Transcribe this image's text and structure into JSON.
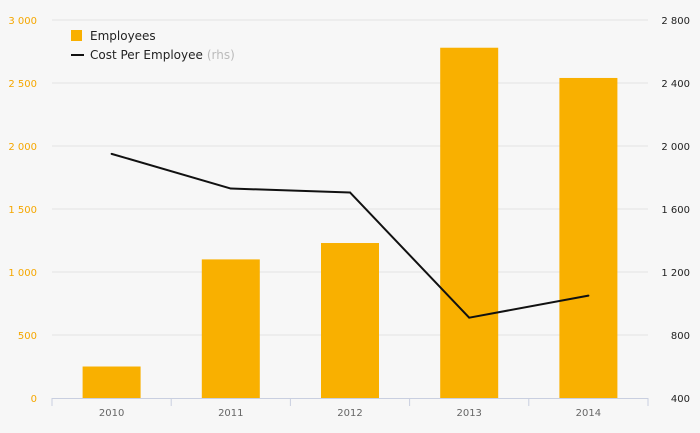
{
  "chart_data": {
    "type": "bar",
    "categories": [
      "2010",
      "2011",
      "2012",
      "2013",
      "2014"
    ],
    "series": [
      {
        "name": "Employees",
        "kind": "bar",
        "axis": "left",
        "color": "#f9b000",
        "values": [
          250,
          1100,
          1230,
          2780,
          2540
        ]
      },
      {
        "name": "Cost Per Employee",
        "kind": "line",
        "axis": "right",
        "color": "#111111",
        "values": [
          1950,
          1730,
          1705,
          910,
          1050
        ]
      }
    ],
    "legend": {
      "items": [
        {
          "label": "Employees",
          "suffix": ""
        },
        {
          "label": "Cost Per Employee",
          "suffix": "(rhs)"
        }
      ],
      "placement": "top-left"
    },
    "y_left": {
      "range": [
        0,
        3000
      ],
      "ticks": [
        0,
        500,
        1000,
        1500,
        2000,
        2500,
        3000
      ],
      "tick_labels": [
        "0",
        "500",
        "1 000",
        "1 500",
        "2 000",
        "2 500",
        "3 000"
      ]
    },
    "y_right": {
      "range": [
        400,
        2800
      ],
      "ticks": [
        400,
        800,
        1200,
        1600,
        2000,
        2400,
        2800
      ],
      "tick_labels": [
        "400",
        "800",
        "1 200",
        "1 600",
        "2 000",
        "2 400",
        "2 800"
      ]
    },
    "grid": true,
    "title": "",
    "xlabel": "",
    "ylabel": ""
  }
}
